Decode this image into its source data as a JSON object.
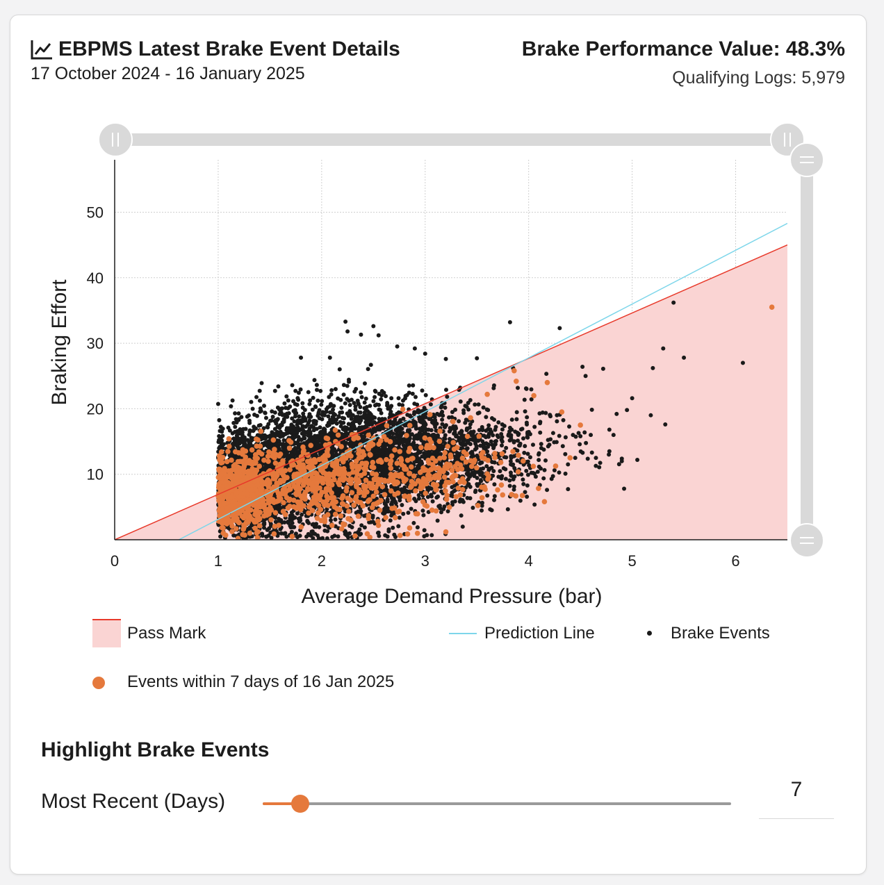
{
  "header": {
    "title": "EBPMS Latest Brake Event Details",
    "title_icon": "line-chart-icon",
    "date_range": "17 October 2024 - 16 January 2025",
    "brake_performance_value": "Brake Performance Value: 48.3%",
    "qualifying_logs": "Qualifying Logs: 5,979"
  },
  "chart_data": {
    "type": "scatter",
    "xlabel": "Average Demand Pressure (bar)",
    "ylabel": "Braking Effort",
    "xlim": [
      0,
      6.5
    ],
    "ylim": [
      0,
      58
    ],
    "x_ticks": [
      "0",
      "1",
      "2",
      "3",
      "4",
      "5",
      "6"
    ],
    "y_ticks": [
      "10",
      "20",
      "30",
      "40",
      "50"
    ],
    "grid": true,
    "pass_mark_line": {
      "x": [
        0,
        6.5
      ],
      "y": [
        0,
        45
      ]
    },
    "prediction_line": {
      "x": [
        0.62,
        6.5
      ],
      "y": [
        0,
        48.3
      ]
    },
    "series": [
      {
        "name": "Brake Events",
        "color": "#1a1a1a",
        "points": [
          [
            5.4,
            36.2
          ],
          [
            5.3,
            29.2
          ],
          [
            5.5,
            27.8
          ],
          [
            6.07,
            27.0
          ],
          [
            5.2,
            26.2
          ],
          [
            5.0,
            21.6
          ],
          [
            4.95,
            19.8
          ],
          [
            5.18,
            19.0
          ],
          [
            5.32,
            17.6
          ],
          [
            5.05,
            12.2
          ],
          [
            4.9,
            12.0
          ],
          [
            4.85,
            19.2
          ],
          [
            3.82,
            33.2
          ],
          [
            4.3,
            32.3
          ],
          [
            3.85,
            26.2
          ],
          [
            4.52,
            26.4
          ],
          [
            4.55,
            25.0
          ],
          [
            4.72,
            26.1
          ],
          [
            4.6,
            16.0
          ],
          [
            4.5,
            15.8
          ],
          [
            4.78,
            16.8
          ],
          [
            4.82,
            16.0
          ],
          [
            4.65,
            12.5
          ],
          [
            4.78,
            13.5
          ],
          [
            2.23,
            33.3
          ],
          [
            2.25,
            31.8
          ],
          [
            2.5,
            32.6
          ],
          [
            2.38,
            31.3
          ],
          [
            2.55,
            31.2
          ],
          [
            2.73,
            29.5
          ],
          [
            2.9,
            29.2
          ],
          [
            3.0,
            28.4
          ],
          [
            3.5,
            27.7
          ],
          [
            3.2,
            27.6
          ],
          [
            2.08,
            27.8
          ],
          [
            1.8,
            27.8
          ],
          [
            3.73,
            9.5
          ],
          [
            3.9,
            10.0
          ],
          [
            3.55,
            5.2
          ],
          [
            3.95,
            8.5
          ],
          [
            4.1,
            13.2
          ],
          [
            4.2,
            14.5
          ],
          [
            4.38,
            11.5
          ],
          [
            4.45,
            12.5
          ],
          [
            4.25,
            10.6
          ]
        ],
        "clusters": [
          {
            "cx": 1.3,
            "cy": 8.5,
            "sx": 0.18,
            "sy": 3.4,
            "n": 2200
          },
          {
            "cx": 1.8,
            "cy": 11,
            "sx": 0.35,
            "sy": 4.5,
            "n": 1800
          },
          {
            "cx": 2.4,
            "cy": 12,
            "sx": 0.4,
            "sy": 5.0,
            "n": 1400
          },
          {
            "cx": 3.0,
            "cy": 13,
            "sx": 0.35,
            "sy": 4.2,
            "n": 700
          },
          {
            "cx": 3.6,
            "cy": 13,
            "sx": 0.35,
            "sy": 3.2,
            "n": 320
          },
          {
            "cx": 4.2,
            "cy": 14.5,
            "sx": 0.25,
            "sy": 4,
            "n": 60
          }
        ]
      },
      {
        "name": "Events within 7 days of 16 Jan 2025",
        "color": "#e5793c",
        "points": [
          [
            6.35,
            35.5
          ],
          [
            3.86,
            25.8
          ],
          [
            3.88,
            24.2
          ],
          [
            3.6,
            22.2
          ],
          [
            4.18,
            24.0
          ],
          [
            4.05,
            22.0
          ],
          [
            4.5,
            17.5
          ],
          [
            4.32,
            19.5
          ],
          [
            4.4,
            12.5
          ],
          [
            3.2,
            1.2
          ],
          [
            2.85,
            1.8
          ],
          [
            2.1,
            2.2
          ]
        ],
        "clusters": [
          {
            "cx": 1.2,
            "cy": 7,
            "sx": 0.15,
            "sy": 2.6,
            "n": 500
          },
          {
            "cx": 1.8,
            "cy": 9,
            "sx": 0.35,
            "sy": 3.0,
            "n": 380
          },
          {
            "cx": 2.5,
            "cy": 9.5,
            "sx": 0.4,
            "sy": 3.4,
            "n": 260
          },
          {
            "cx": 3.3,
            "cy": 11,
            "sx": 0.35,
            "sy": 2.8,
            "n": 120
          }
        ]
      }
    ],
    "legend": {
      "placement": "bottom",
      "pass_mark": "Pass Mark",
      "prediction_line": "Prediction Line",
      "brake_events": "Brake Events",
      "recent_events": "Events within 7 days of 16 Jan 2025"
    },
    "colors": {
      "pass_fill": "#fad4d3",
      "pass_line": "#e8392a",
      "prediction": "#7dd6ea",
      "brake": "#1a1a1a",
      "recent": "#e5793c"
    },
    "range_slider_x": [
      0,
      6.5
    ],
    "range_slider_y": [
      0,
      58
    ]
  },
  "highlight": {
    "section_title": "Highlight Brake Events",
    "slider_label": "Most Recent (Days)",
    "slider_fraction": 0.08,
    "value": "7"
  }
}
